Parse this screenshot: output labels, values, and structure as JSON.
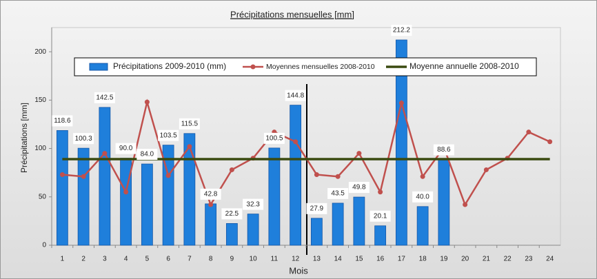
{
  "chart_data": {
    "type": "bar",
    "title": "Précipitations mensuelles [mm]",
    "x_label": "Mois",
    "y_label": "Précipitations [mm]",
    "categories": [
      "1",
      "2",
      "3",
      "4",
      "5",
      "6",
      "7",
      "8",
      "9",
      "10",
      "11",
      "12",
      "13",
      "14",
      "15",
      "16",
      "17",
      "18",
      "19",
      "20",
      "21",
      "22",
      "23",
      "24"
    ],
    "ylim": [
      0,
      225
    ],
    "yticks": [
      0,
      50,
      100,
      150,
      200
    ],
    "grid": false,
    "legend": "top",
    "series": [
      {
        "name": "Précipitations 2009-2010 (mm)",
        "type": "bar",
        "color": "#1f7fdb",
        "values": [
          118.6,
          100.3,
          142.5,
          90.0,
          84.0,
          103.5,
          115.5,
          42.8,
          22.5,
          32.3,
          100.5,
          144.8,
          27.9,
          43.5,
          49.8,
          20.1,
          212.2,
          40.0,
          88.6,
          null,
          null,
          null,
          null,
          null
        ],
        "value_labels": [
          "118.6",
          "100.3",
          "142.5",
          "90.0",
          "84.0",
          "103.5",
          "115.5",
          "42.8",
          "22.5",
          "32.3",
          "100.5",
          "144.8",
          "27.9",
          "43.5",
          "49.8",
          "20.1",
          "212.2",
          "40.0",
          "88.6",
          null,
          null,
          null,
          null,
          null
        ]
      },
      {
        "name": "Moyennes mensuelles 2008-2010",
        "type": "line",
        "color": "#c0504d",
        "values": [
          73,
          71,
          95,
          55,
          148,
          72,
          102,
          42,
          78,
          90,
          117,
          107,
          73,
          71,
          95,
          55,
          147,
          71,
          101,
          42,
          78,
          90,
          117,
          107
        ]
      },
      {
        "name": "Moyenne annuelle 2008-2010",
        "type": "hline",
        "color": "#3a4a10",
        "value": 89
      }
    ]
  }
}
